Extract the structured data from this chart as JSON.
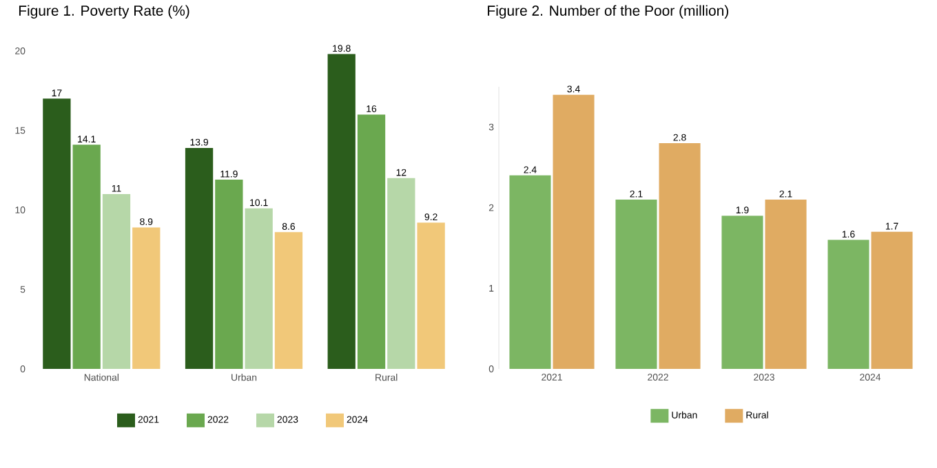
{
  "chart_data": [
    {
      "type": "bar",
      "title": "Figure 1. Poverty Rate (%)",
      "categories": [
        "National",
        "Urban",
        "Rural"
      ],
      "series": [
        {
          "name": "2021",
          "color": "#2b5d1c",
          "values": [
            17,
            13.9,
            19.8
          ]
        },
        {
          "name": "2022",
          "color": "#6aa84f",
          "values": [
            14.1,
            11.9,
            16
          ]
        },
        {
          "name": "2023",
          "color": "#b6d7a8",
          "values": [
            11,
            10.1,
            12
          ]
        },
        {
          "name": "2024",
          "color": "#f1c879",
          "values": [
            8.9,
            8.6,
            9.2
          ]
        }
      ],
      "ylim": [
        0,
        20
      ],
      "yticks": [
        0,
        5,
        10,
        15,
        20
      ],
      "data_labels": true,
      "legend": "bottom"
    },
    {
      "type": "bar",
      "title": "Figure 2. Number of the Poor (million)",
      "categories": [
        "2021",
        "2022",
        "2023",
        "2024"
      ],
      "series": [
        {
          "name": "Urban",
          "color": "#7cb663",
          "values": [
            2.4,
            2.1,
            1.9,
            1.6
          ]
        },
        {
          "name": "Rural",
          "color": "#e0ab62",
          "values": [
            3.4,
            2.8,
            2.1,
            1.7
          ]
        }
      ],
      "ylim": [
        0,
        3.5
      ],
      "yticks": [
        0,
        1,
        2,
        3
      ],
      "data_labels": true,
      "legend": "bottom"
    }
  ]
}
